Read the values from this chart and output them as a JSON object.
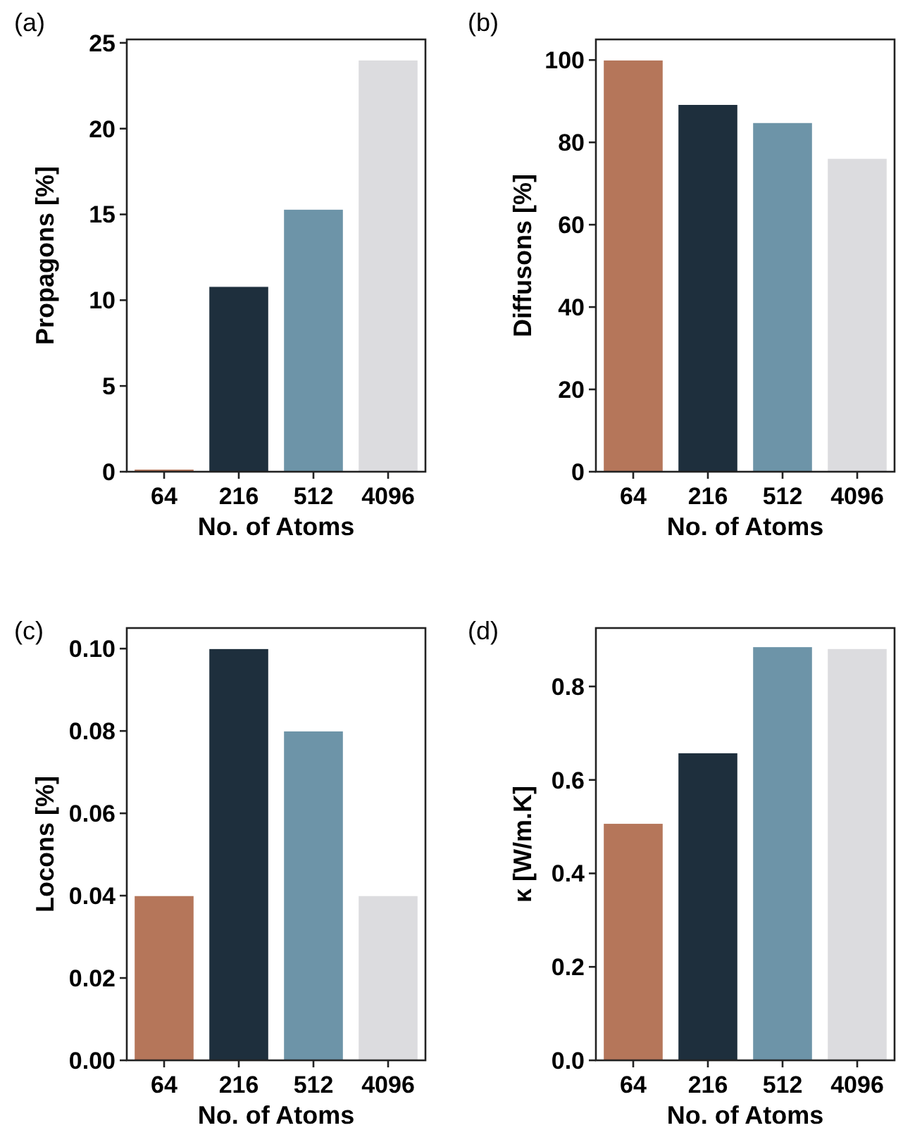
{
  "chart_data": [
    {
      "type": "bar",
      "annotations": [
        "(a)"
      ],
      "xlabel": "No. of Atoms",
      "ylabel": "Propagons [%]",
      "categories": [
        "64",
        "216",
        "512",
        "4096"
      ],
      "values": [
        0.15,
        10.8,
        15.3,
        24
      ],
      "colors": [
        "#b5765a",
        "#1e2f3d",
        "#6d94a8",
        "#dcdcdf"
      ],
      "ylim": [
        0,
        25.2
      ],
      "yticks": [
        0,
        5,
        10,
        15,
        20,
        25
      ],
      "grid": false
    },
    {
      "type": "bar",
      "annotations": [
        "(b)"
      ],
      "xlabel": "No. of Atoms",
      "ylabel": "Diffusons [%]",
      "categories": [
        "64",
        "216",
        "512",
        "4096"
      ],
      "values": [
        100,
        89.2,
        84.8,
        76.1
      ],
      "colors": [
        "#b5765a",
        "#1e2f3d",
        "#6d94a8",
        "#dcdcdf"
      ],
      "ylim": [
        0,
        105
      ],
      "yticks": [
        0,
        20,
        40,
        60,
        80,
        100
      ],
      "grid": false
    },
    {
      "type": "bar",
      "annotations": [
        "(c)"
      ],
      "xlabel": "No. of Atoms",
      "ylabel": "Locons [%]",
      "categories": [
        "64",
        "216",
        "512",
        "4096"
      ],
      "values": [
        0.04,
        0.1,
        0.08,
        0.04
      ],
      "colors": [
        "#b5765a",
        "#1e2f3d",
        "#6d94a8",
        "#dcdcdf"
      ],
      "ylim": [
        0,
        0.105
      ],
      "yticks": [
        {
          "value": 0,
          "label": "0.00"
        },
        {
          "value": 0.02,
          "label": "0.02"
        },
        {
          "value": 0.04,
          "label": "0.04"
        },
        {
          "value": 0.06,
          "label": "0.06"
        },
        {
          "value": 0.08,
          "label": "0.08"
        },
        {
          "value": 0.1,
          "label": "0.10"
        }
      ],
      "grid": false
    },
    {
      "type": "bar",
      "annotations": [
        "(d)"
      ],
      "xlabel": "No. of Atoms",
      "ylabel": "κ [W/m.K]",
      "categories": [
        "64",
        "216",
        "512",
        "4096"
      ],
      "values": [
        0.507,
        0.658,
        0.885,
        0.881
      ],
      "colors": [
        "#b5765a",
        "#1e2f3d",
        "#6d94a8",
        "#dcdcdf"
      ],
      "ylim": [
        0,
        0.925
      ],
      "yticks": [
        {
          "value": 0,
          "label": "0.0"
        },
        {
          "value": 0.2,
          "label": "0.2"
        },
        {
          "value": 0.4,
          "label": "0.4"
        },
        {
          "value": 0.6,
          "label": "0.6"
        },
        {
          "value": 0.8,
          "label": "0.8"
        }
      ],
      "grid": false
    }
  ]
}
